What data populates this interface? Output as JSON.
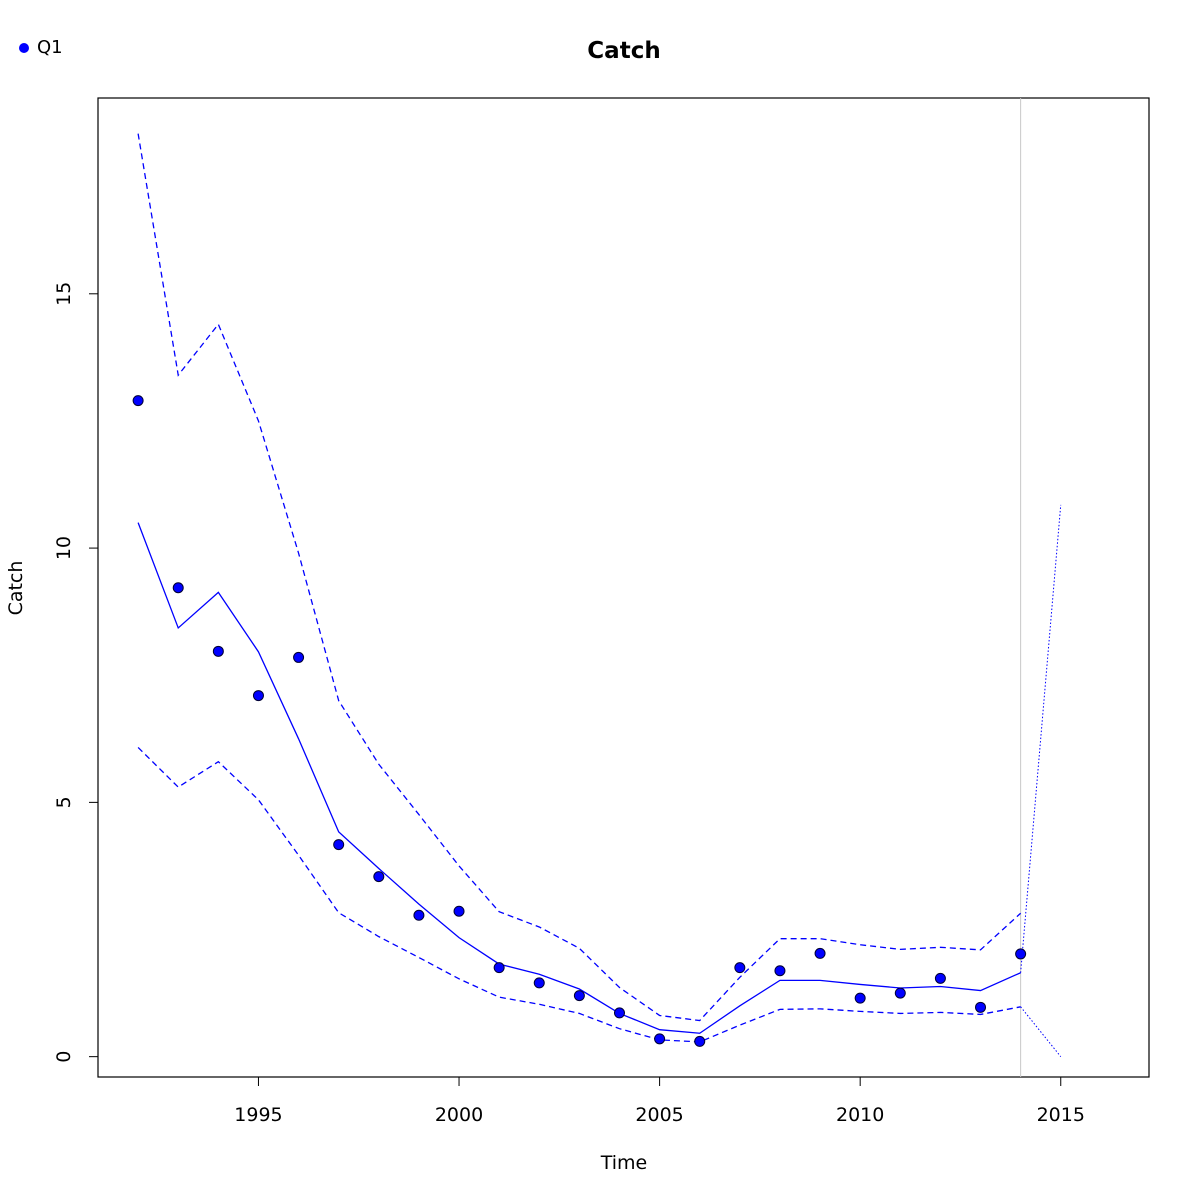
{
  "chart_data": {
    "type": "line",
    "title": "Catch",
    "xlabel": "Time",
    "ylabel": "Catch",
    "xlim": [
      1991.0,
      2017.2
    ],
    "ylim": [
      -0.4,
      18.85
    ],
    "x_ticks": [
      1995,
      2000,
      2005,
      2010,
      2015
    ],
    "y_ticks": [
      0,
      5,
      10,
      15
    ],
    "grid": false,
    "legend": {
      "position": "top-left",
      "entries": [
        {
          "label": "Q1",
          "marker": "point",
          "color": "#0000ff"
        }
      ]
    },
    "vertical_line": {
      "x": 2014,
      "color": "#c8c8c8"
    },
    "colors": {
      "series": "#0000ff",
      "point_edge": "#000033",
      "axes": "#000000"
    },
    "series": [
      {
        "name": "Q1",
        "kind": "points",
        "x": [
          1992,
          1993,
          1994,
          1995,
          1996,
          1997,
          1998,
          1999,
          2000,
          2001,
          2002,
          2003,
          2004,
          2005,
          2006,
          2007,
          2008,
          2009,
          2010,
          2011,
          2012,
          2013,
          2014
        ],
        "y": [
          12.9,
          9.22,
          7.97,
          7.1,
          7.85,
          4.17,
          3.54,
          2.78,
          2.86,
          1.75,
          1.45,
          1.2,
          0.86,
          0.35,
          0.3,
          1.75,
          1.69,
          2.03,
          1.15,
          1.25,
          1.54,
          0.97,
          2.02
        ]
      },
      {
        "kind": "fitted",
        "line": "solid",
        "x": [
          1992,
          1993,
          1994,
          1995,
          1996,
          1997,
          1998,
          1999,
          2000,
          2001,
          2002,
          2003,
          2004,
          2005,
          2006,
          2007,
          2008,
          2009,
          2010,
          2011,
          2012,
          2013,
          2014
        ],
        "y": [
          10.5,
          8.43,
          9.13,
          7.96,
          6.25,
          4.42,
          3.7,
          3.0,
          2.34,
          1.82,
          1.62,
          1.33,
          0.85,
          0.53,
          0.46,
          1.0,
          1.5,
          1.5,
          1.42,
          1.35,
          1.38,
          1.3,
          1.65
        ]
      },
      {
        "kind": "upper-bound",
        "line": "dashed",
        "x": [
          1992,
          1993,
          1994,
          1995,
          1996,
          1997,
          1998,
          1999,
          2000,
          2001,
          2002,
          2003,
          2004,
          2005,
          2006,
          2007,
          2008,
          2009,
          2010,
          2011,
          2012,
          2013,
          2014
        ],
        "y": [
          18.15,
          13.4,
          14.4,
          12.5,
          9.9,
          7.0,
          5.75,
          4.76,
          3.75,
          2.85,
          2.55,
          2.13,
          1.36,
          0.81,
          0.71,
          1.56,
          2.32,
          2.32,
          2.2,
          2.11,
          2.15,
          2.1,
          2.82
        ]
      },
      {
        "kind": "lower-bound",
        "line": "dashed",
        "x": [
          1992,
          1993,
          1994,
          1995,
          1996,
          1997,
          1998,
          1999,
          2000,
          2001,
          2002,
          2003,
          2004,
          2005,
          2006,
          2007,
          2008,
          2009,
          2010,
          2011,
          2012,
          2013,
          2014
        ],
        "y": [
          6.08,
          5.3,
          5.8,
          5.05,
          3.96,
          2.83,
          2.36,
          1.95,
          1.53,
          1.17,
          1.03,
          0.85,
          0.55,
          0.33,
          0.29,
          0.62,
          0.93,
          0.94,
          0.89,
          0.85,
          0.87,
          0.83,
          0.98
        ]
      },
      {
        "kind": "forecast-upper",
        "line": "dotted",
        "x": [
          2014,
          2015
        ],
        "y": [
          1.65,
          10.85
        ]
      },
      {
        "kind": "forecast-lower",
        "line": "dotted",
        "x": [
          2014,
          2015
        ],
        "y": [
          0.98,
          0.0
        ]
      }
    ]
  }
}
